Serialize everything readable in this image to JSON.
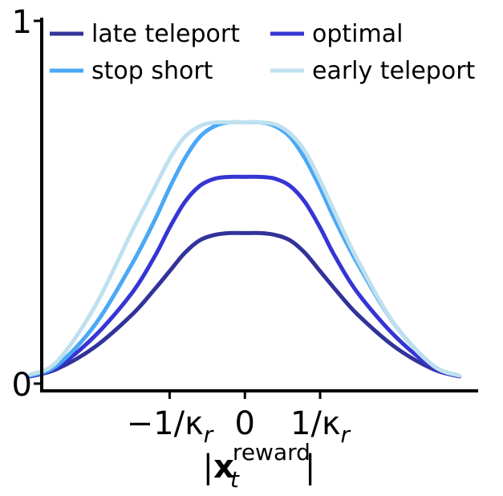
{
  "chart_data": {
    "type": "line",
    "title": "",
    "xlabel": "|x_t^reward|",
    "ylabel": "",
    "xlim": [
      -2.7,
      3.1
    ],
    "ylim": [
      -0.02,
      1.0
    ],
    "yticks": [
      {
        "value": 0,
        "label": "0"
      },
      {
        "value": 1,
        "label": "1"
      }
    ],
    "xticks": [
      {
        "value": -1,
        "label": "−1/κr"
      },
      {
        "value": 0,
        "label": "0"
      },
      {
        "value": 1,
        "label": "1/κr"
      }
    ],
    "grid": false,
    "legend": {
      "placement": "top",
      "columns": 2
    },
    "series": [
      {
        "name": "late teleport",
        "color": "#32329a",
        "x": [
          -2.85,
          -2.5,
          -2.0,
          -1.5,
          -1.2,
          -1.0,
          -0.8,
          -0.6,
          -0.4,
          -0.2,
          0,
          0.2,
          0.4,
          0.6,
          0.8,
          1.0,
          1.2,
          1.5,
          2.0,
          2.5,
          2.85
        ],
        "y": [
          0.02,
          0.04,
          0.1,
          0.19,
          0.26,
          0.31,
          0.36,
          0.395,
          0.41,
          0.415,
          0.415,
          0.415,
          0.41,
          0.395,
          0.36,
          0.31,
          0.26,
          0.19,
          0.1,
          0.04,
          0.02
        ]
      },
      {
        "name": "optimal",
        "color": "#3535d5",
        "x": [
          -2.85,
          -2.5,
          -2.0,
          -1.5,
          -1.2,
          -1.0,
          -0.8,
          -0.6,
          -0.4,
          -0.2,
          0,
          0.2,
          0.4,
          0.6,
          0.8,
          1.0,
          1.2,
          1.5,
          2.0,
          2.5,
          2.85
        ],
        "y": [
          0.02,
          0.045,
          0.13,
          0.25,
          0.35,
          0.43,
          0.5,
          0.545,
          0.565,
          0.57,
          0.57,
          0.57,
          0.565,
          0.545,
          0.5,
          0.43,
          0.35,
          0.25,
          0.13,
          0.045,
          0.02
        ]
      },
      {
        "name": "stop short",
        "color": "#4aa8f5",
        "x": [
          -2.85,
          -2.5,
          -2.0,
          -1.5,
          -1.2,
          -1.0,
          -0.8,
          -0.6,
          -0.4,
          -0.2,
          0,
          0.2,
          0.4,
          0.6,
          0.8,
          1.0,
          1.2,
          1.5,
          2.0,
          2.5,
          2.85
        ],
        "y": [
          0.022,
          0.05,
          0.16,
          0.33,
          0.45,
          0.54,
          0.62,
          0.68,
          0.71,
          0.72,
          0.72,
          0.72,
          0.71,
          0.68,
          0.62,
          0.54,
          0.45,
          0.33,
          0.16,
          0.05,
          0.022
        ]
      },
      {
        "name": "early teleport",
        "color": "#bfe0ee",
        "x": [
          -2.85,
          -2.5,
          -2.0,
          -1.5,
          -1.2,
          -1.0,
          -0.8,
          -0.6,
          -0.4,
          -0.2,
          0,
          0.2,
          0.4,
          0.6,
          0.8,
          1.0,
          1.2,
          1.5,
          2.0,
          2.5,
          2.85
        ],
        "y": [
          0.025,
          0.06,
          0.21,
          0.42,
          0.54,
          0.62,
          0.68,
          0.71,
          0.72,
          0.72,
          0.72,
          0.72,
          0.715,
          0.69,
          0.64,
          0.56,
          0.47,
          0.34,
          0.16,
          0.05,
          0.022
        ]
      }
    ]
  }
}
